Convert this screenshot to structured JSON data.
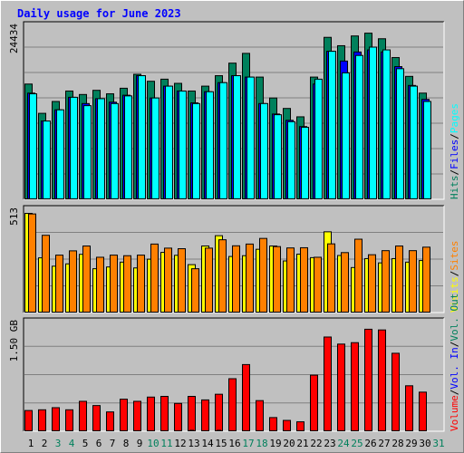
{
  "chart_data": [
    {
      "type": "bar",
      "title": "Daily usage for June 2023",
      "categories": [
        "1",
        "2",
        "3",
        "4",
        "5",
        "6",
        "7",
        "8",
        "9",
        "10",
        "11",
        "12",
        "13",
        "14",
        "15",
        "16",
        "17",
        "18",
        "19",
        "20",
        "21",
        "22",
        "23",
        "24",
        "25",
        "26",
        "27",
        "28",
        "29",
        "30",
        "31"
      ],
      "weekend_days": [
        "3",
        "4",
        "10",
        "11",
        "17",
        "18",
        "24",
        "25",
        "31"
      ],
      "panel": "top",
      "ylabel_max": "24434",
      "ymax": 24434,
      "legend": [
        {
          "text": "Hits",
          "color": "#00805c"
        },
        {
          "text": "Files",
          "color": "#0000ff"
        },
        {
          "text": "Pages",
          "color": "#00ffff"
        }
      ],
      "series": [
        {
          "name": "Hits",
          "color": "#00805c",
          "values": [
            16600,
            12400,
            14100,
            15600,
            15100,
            15700,
            15200,
            16000,
            18000,
            17000,
            17300,
            16700,
            15600,
            16300,
            17800,
            19600,
            21000,
            17600,
            14600,
            13100,
            11900,
            17600,
            23300,
            22100,
            23500,
            23900,
            23100,
            20400,
            17700,
            15300,
            0
          ]
        },
        {
          "name": "Files",
          "color": "#0000ff",
          "values": [
            15300,
            11300,
            12900,
            14700,
            13800,
            14500,
            14000,
            15000,
            17800,
            14600,
            16300,
            15600,
            13900,
            15500,
            16800,
            17800,
            17600,
            13800,
            12300,
            11400,
            10500,
            16600,
            21300,
            19900,
            21200,
            21500,
            21200,
            19100,
            16400,
            14400,
            0
          ]
        },
        {
          "name": "Pages",
          "color": "#00ffff",
          "values": [
            15200,
            11300,
            12900,
            14700,
            13500,
            14500,
            13800,
            14900,
            17800,
            14600,
            16300,
            15600,
            13800,
            15500,
            16800,
            17800,
            17600,
            13800,
            12200,
            11200,
            10400,
            17300,
            21300,
            18200,
            20700,
            21900,
            21500,
            18800,
            16300,
            14100,
            0
          ]
        }
      ]
    },
    {
      "type": "bar",
      "panel": "middle",
      "ylabel_max": "513",
      "ymax": 513,
      "legend": [
        {
          "text": "Visits",
          "color": "#ffff00"
        },
        {
          "text": "Sites",
          "color": "#ff8000"
        }
      ],
      "series": [
        {
          "name": "Visits",
          "color": "#ffff00",
          "values": [
            513,
            284,
            241,
            253,
            302,
            228,
            237,
            262,
            232,
            277,
            312,
            297,
            249,
            345,
            398,
            291,
            295,
            328,
            345,
            268,
            303,
            285,
            418,
            296,
            234,
            280,
            258,
            280,
            262,
            270,
            0
          ]
        },
        {
          "name": "Sites",
          "color": "#ff8000",
          "values": [
            510,
            400,
            298,
            320,
            345,
            287,
            298,
            295,
            298,
            355,
            334,
            331,
            228,
            334,
            377,
            346,
            355,
            384,
            342,
            335,
            336,
            287,
            356,
            311,
            380,
            300,
            321,
            345,
            321,
            339,
            0
          ]
        }
      ]
    },
    {
      "type": "bar",
      "panel": "bottom",
      "ylabel_max": "1.50 GB",
      "ymax": 1.5,
      "legend": [
        {
          "text": "Volume",
          "color": "#ff0000"
        },
        {
          "text": "Vol. In",
          "color": "#0000ff"
        },
        {
          "text": "Vol. Out",
          "color": "#00805c"
        }
      ],
      "series": [
        {
          "name": "Volume",
          "color": "#ff0000",
          "values": [
            0.3,
            0.31,
            0.34,
            0.31,
            0.43,
            0.37,
            0.28,
            0.46,
            0.43,
            0.49,
            0.5,
            0.4,
            0.5,
            0.45,
            0.53,
            0.75,
            0.95,
            0.44,
            0.2,
            0.16,
            0.14,
            0.8,
            1.34,
            1.24,
            1.26,
            1.45,
            1.44,
            1.11,
            0.65,
            0.56,
            0
          ]
        },
        {
          "name": "Vol. In",
          "color": "#0000ff",
          "values": [
            0,
            0,
            0,
            0,
            0,
            0,
            0,
            0,
            0,
            0,
            0,
            0,
            0,
            0,
            0,
            0,
            0,
            0,
            0,
            0,
            0,
            0,
            0,
            0,
            0,
            0,
            0,
            0,
            0,
            0,
            0
          ]
        },
        {
          "name": "Vol. Out",
          "color": "#00805c",
          "values": [
            0,
            0,
            0,
            0,
            0,
            0,
            0,
            0,
            0,
            0,
            0,
            0,
            0.02,
            0,
            0.02,
            0,
            0,
            0,
            0,
            0,
            0,
            0,
            0,
            0,
            0,
            0,
            0,
            0,
            0,
            0,
            0
          ]
        }
      ]
    }
  ],
  "colors": {
    "background": "#c0c0c0",
    "weekday_label": "#000000",
    "weekend_label": "#00805c",
    "title": "#0000ff",
    "separator": "#000000"
  }
}
